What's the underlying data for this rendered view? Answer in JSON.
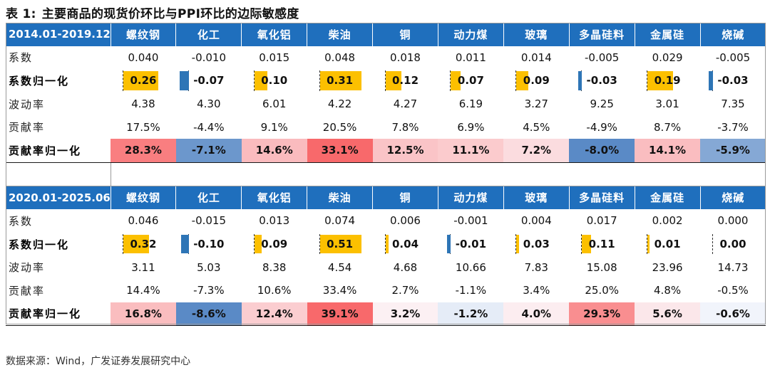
{
  "title": {
    "lead": "表 1:",
    "text": "主要商品的现货价环比与PPI环比的边际敏感度"
  },
  "source": "数据来源：Wind，广发证券发展研究中心",
  "colors": {
    "header": "#1f6fbd",
    "bar_pos": "#fcc000",
    "bar_neg": "#2e75b6",
    "heat_pos": "#f8696b",
    "heat_neg": "#5a8ac6",
    "heat_mid": "#fcfcff"
  },
  "commodities": [
    "螺纹钢",
    "化工",
    "氧化铝",
    "柴油",
    "铜",
    "动力煤",
    "玻璃",
    "多晶硅料",
    "金属硅",
    "烧碱"
  ],
  "row_labels": {
    "coef": "系数",
    "coef_norm": "系数归一化",
    "vol": "波动率",
    "contrib": "贡献率",
    "contrib_norm": "贡献率归一化"
  },
  "chart_data": {
    "type": "table",
    "title": "主要商品的现货价环比与PPI环比的边际敏感度",
    "columns": [
      "螺纹钢",
      "化工",
      "氧化铝",
      "柴油",
      "铜",
      "动力煤",
      "玻璃",
      "多晶硅料",
      "金属硅",
      "烧碱"
    ],
    "periods": [
      {
        "period": "2014.01-2019.12",
        "coef": [
          "0.040",
          "-0.010",
          "0.015",
          "0.048",
          "0.018",
          "0.011",
          "0.014",
          "-0.005",
          "0.029",
          "-0.005"
        ],
        "coef_norm": [
          0.26,
          -0.07,
          0.1,
          0.31,
          0.12,
          0.07,
          0.09,
          -0.03,
          0.19,
          -0.03
        ],
        "coef_norm_text": [
          "0.26",
          "-0.07",
          "0.10",
          "0.31",
          "0.12",
          "0.07",
          "0.09",
          "-0.03",
          "0.19",
          "-0.03"
        ],
        "vol": [
          "4.38",
          "4.30",
          "6.01",
          "4.22",
          "4.27",
          "6.19",
          "3.27",
          "9.25",
          "3.01",
          "7.35"
        ],
        "contrib": [
          "17.5%",
          "-4.4%",
          "9.1%",
          "20.5%",
          "7.8%",
          "6.9%",
          "4.5%",
          "-4.9%",
          "8.7%",
          "-3.7%"
        ],
        "contrib_norm": [
          28.3,
          -7.1,
          14.6,
          33.1,
          12.5,
          11.1,
          7.2,
          -8.0,
          14.1,
          -5.9
        ],
        "contrib_norm_text": [
          "28.3%",
          "-7.1%",
          "14.6%",
          "33.1%",
          "12.5%",
          "11.1%",
          "7.2%",
          "-8.0%",
          "14.1%",
          "-5.9%"
        ]
      },
      {
        "period": "2020.01-2025.06",
        "coef": [
          "0.046",
          "-0.015",
          "0.013",
          "0.074",
          "0.006",
          "-0.001",
          "0.004",
          "0.017",
          "0.002",
          "0.000"
        ],
        "coef_norm": [
          0.32,
          -0.1,
          0.09,
          0.51,
          0.04,
          -0.01,
          0.03,
          0.11,
          0.01,
          0.0
        ],
        "coef_norm_text": [
          "0.32",
          "-0.10",
          "0.09",
          "0.51",
          "0.04",
          "-0.01",
          "0.03",
          "0.11",
          "0.01",
          "0.00"
        ],
        "vol": [
          "3.11",
          "5.03",
          "8.38",
          "4.54",
          "4.68",
          "10.66",
          "7.83",
          "15.08",
          "23.96",
          "14.73"
        ],
        "contrib": [
          "14.4%",
          "-7.3%",
          "10.6%",
          "33.4%",
          "2.7%",
          "-1.1%",
          "3.4%",
          "25.0%",
          "4.8%",
          "-0.5%"
        ],
        "contrib_norm": [
          16.8,
          -8.6,
          12.4,
          39.1,
          3.2,
          -1.2,
          4.0,
          29.3,
          5.6,
          -0.6
        ],
        "contrib_norm_text": [
          "16.8%",
          "-8.6%",
          "12.4%",
          "39.1%",
          "3.2%",
          "-1.2%",
          "4.0%",
          "29.3%",
          "5.6%",
          "-0.6%"
        ]
      }
    ]
  }
}
